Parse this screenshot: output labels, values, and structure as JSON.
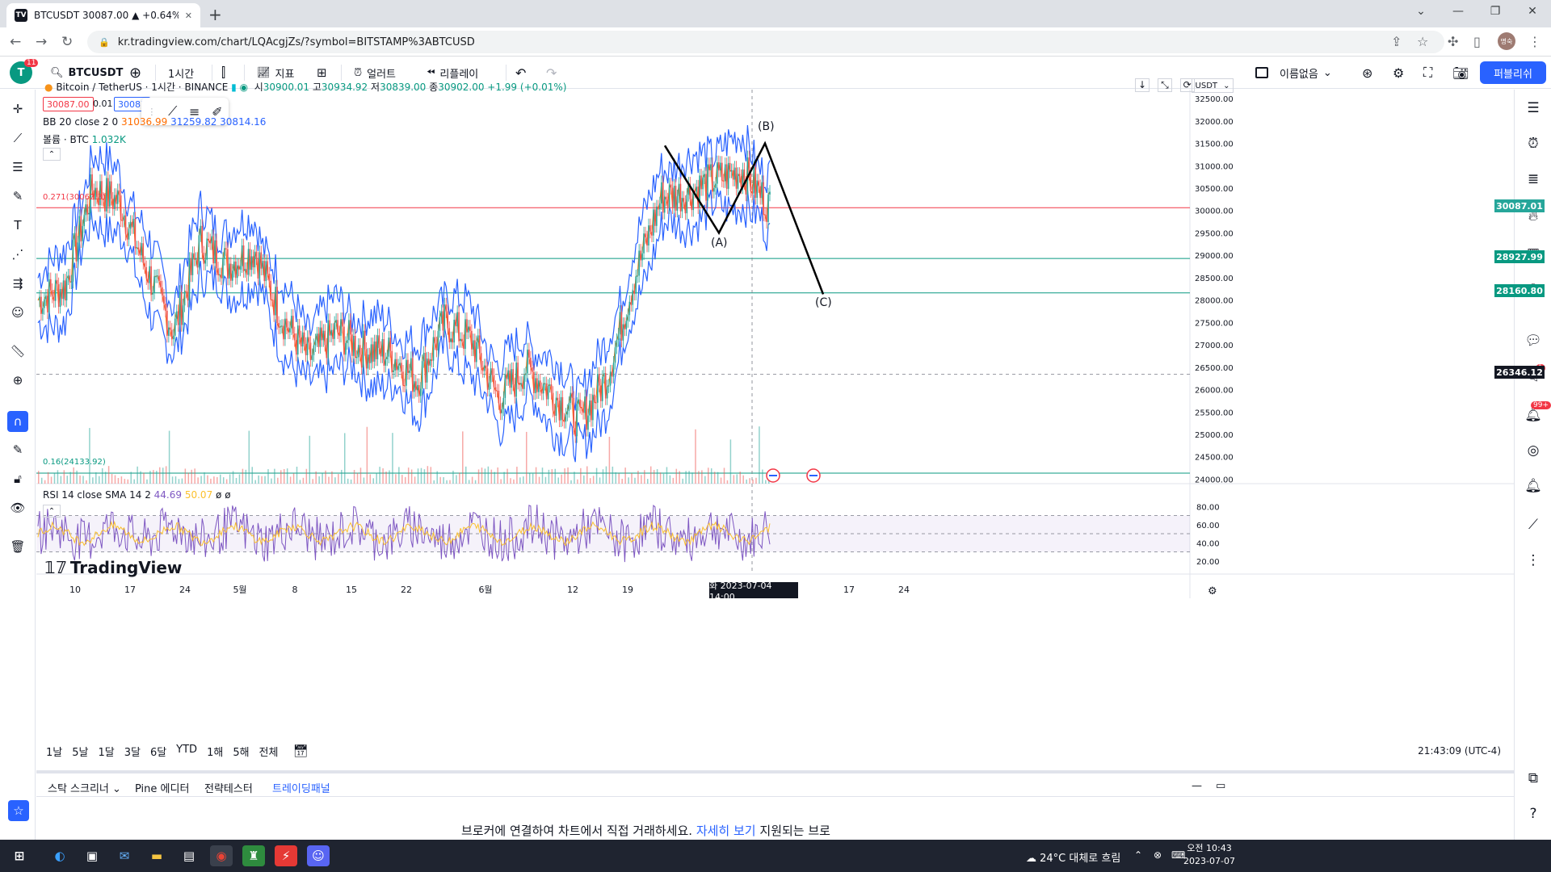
{
  "browser": {
    "tab_title": "BTCUSDT 30087.00 ▲ +0.64%",
    "tab_favicon": "TV",
    "url": "kr.tradingview.com/chart/LQAcgjZs/?symbol=BITSTAMP%3ABTCUSD",
    "profile": "명숙"
  },
  "toolbar": {
    "notif_count": "11",
    "symbol": "BTCUSDT",
    "interval": "1시간",
    "indicators": "지표",
    "alert": "얼러트",
    "replay": "리플레이",
    "layout_name": "이름없음",
    "publish": "퍼블리쉬"
  },
  "legend": {
    "title": "Bitcoin / TetherUS · 1시간 · BINANCE",
    "o_label": "시",
    "o_val": "30900.01",
    "h_label": "고",
    "h_val": "30934.92",
    "l_label": "저",
    "l_val": "30839.00",
    "c_val": "30902.00",
    "change": "+1.99 (+0.01%)",
    "bid": "30087.00",
    "spread": "0.01",
    "ask": "30087",
    "bb": "BB 20 close 2 0",
    "bb_val": "31036.99",
    "bb_val2": "31259.82  30814.16",
    "volume_label": "볼륨 · BTC",
    "volume_val": "1.032K",
    "fib_top": "0.271(30062.3)",
    "fib_bottom": "0.16(24133.92)",
    "rsi": "RSI 14 close SMA 14 2",
    "rsi_val": "44.69",
    "rsi_sma": "50.07",
    "rsi_extra": "ø ø"
  },
  "axis": {
    "currency": "USDT",
    "price_ticks": [
      "32500.00",
      "32000.00",
      "31500.00",
      "31000.00",
      "30500.00",
      "30000.00",
      "29500.00",
      "29000.00",
      "28500.00",
      "28000.00",
      "27500.00",
      "27000.00",
      "26500.00",
      "26000.00",
      "25500.00",
      "25000.00",
      "24500.00",
      "24000.00"
    ],
    "rsi_ticks": [
      "80.00",
      "60.00",
      "40.00",
      "20.00"
    ],
    "time_ticks": [
      "10",
      "17",
      "24",
      "5월",
      "8",
      "15",
      "22",
      "6월",
      "12",
      "19",
      "",
      "17",
      "24"
    ],
    "crosshair_time": "화 2023-07-04  14:00",
    "price_labels": {
      "current": "30087.01",
      "level1": "28927.99",
      "level2": "28160.80",
      "cross": "26346.12"
    },
    "colors": {
      "current": "#26a69a",
      "level": "#089981",
      "cross": "#131722"
    }
  },
  "waves": {
    "a": "(A)",
    "b": "(B)",
    "c": "(C)"
  },
  "watermark": "TradingView",
  "range": {
    "items": [
      "1날",
      "5날",
      "1달",
      "3달",
      "6달",
      "YTD",
      "1해",
      "5해",
      "전체"
    ],
    "clock": "21:43:09 (UTC-4)"
  },
  "bottom": {
    "tabs": [
      "스탁 스크리너",
      "Pine 에디터",
      "전략테스터",
      "트레이딩패널"
    ],
    "message": "브로커에 연결하여 차트에서 직접 거래하세요.",
    "link": "자세히 보기",
    "message2": "지원되는 브로"
  },
  "taskbar": {
    "weather": "24°C  대체로 흐림",
    "time": "오전 10:43",
    "date": "2023-07-07"
  },
  "chart_data": {
    "type": "candlestick",
    "title": "Bitcoin / TetherUS · 1시간 · BINANCE",
    "ylim": [
      23900,
      32700
    ],
    "series": [
      {
        "name": "BTCUSDT",
        "x": [
          "04-03",
          "04-10",
          "04-14",
          "04-17",
          "04-20",
          "04-24",
          "04-27",
          "05-01",
          "05-05",
          "05-08",
          "05-12",
          "05-15",
          "05-19",
          "05-22",
          "05-26",
          "05-29",
          "06-01",
          "06-05",
          "06-08",
          "06-12",
          "06-15",
          "06-19",
          "06-21",
          "06-23",
          "06-27",
          "07-01",
          "07-04",
          "07-06"
        ],
        "y": [
          28000,
          28300,
          30500,
          30200,
          28700,
          27300,
          29300,
          28800,
          29100,
          27600,
          26700,
          27300,
          26900,
          26800,
          26200,
          27500,
          27100,
          25800,
          26500,
          25900,
          25300,
          26300,
          28500,
          30300,
          30400,
          30700,
          30900,
          30087
        ]
      }
    ],
    "price_levels": [
      30062.3,
      28927.99,
      28160.8,
      24133.92
    ]
  }
}
